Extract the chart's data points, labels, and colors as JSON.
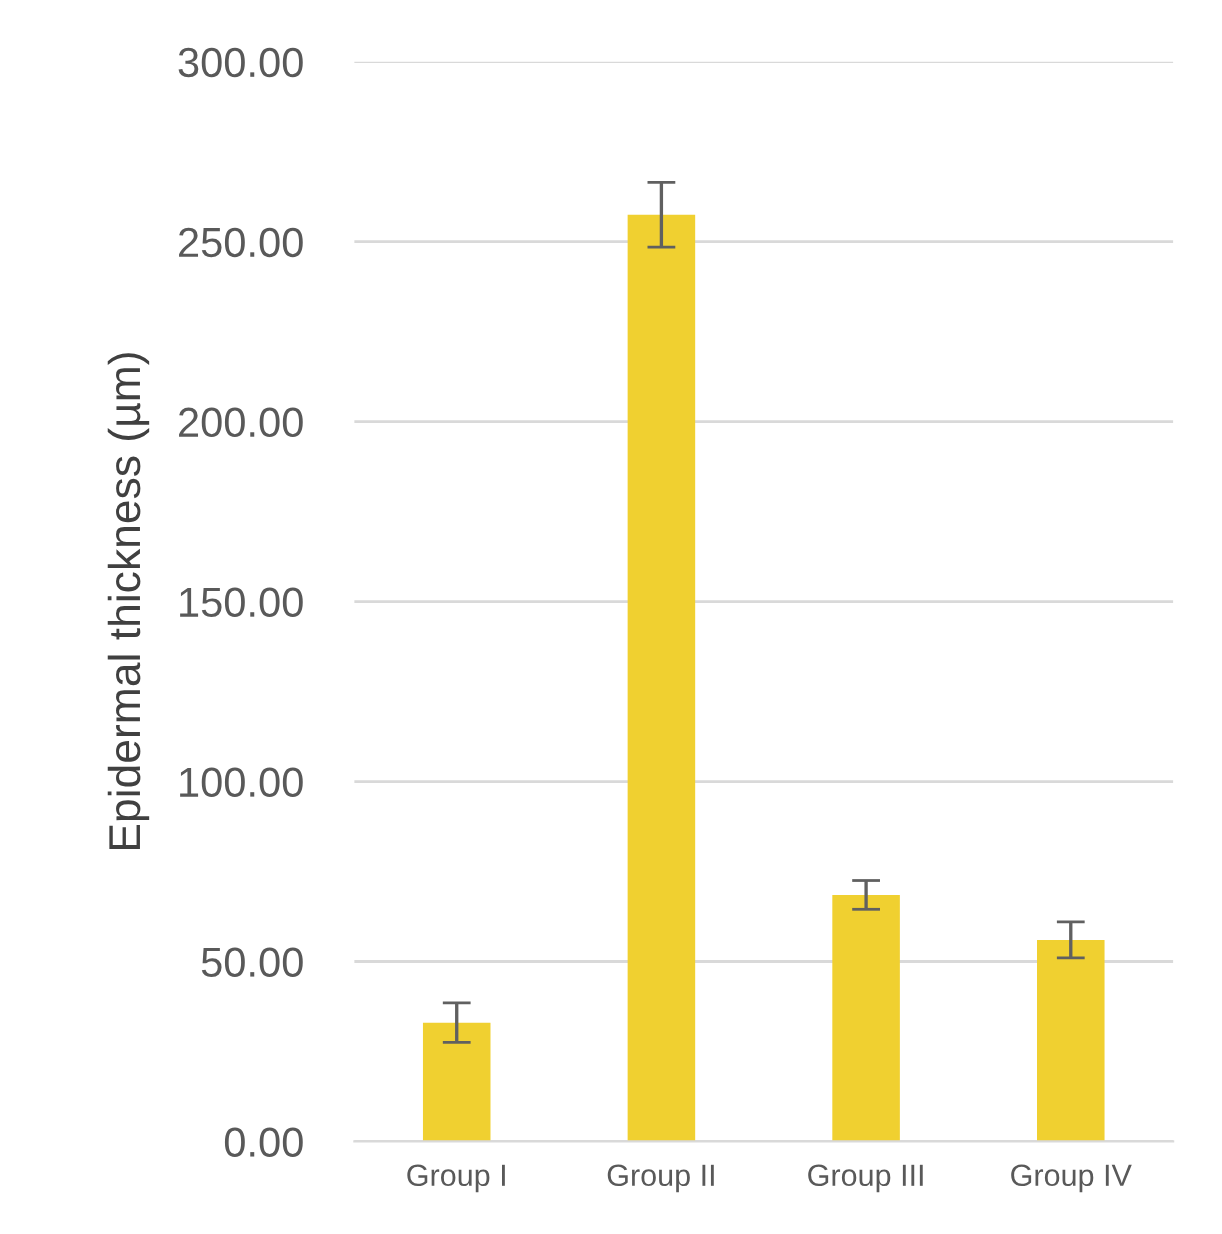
{
  "chart_data": {
    "type": "bar",
    "ylabel": "Epidermal thickness (µm)",
    "categories": [
      "Group I",
      "Group II",
      "Group III",
      "Group IV"
    ],
    "values": [
      33,
      257.5,
      68.5,
      56
    ],
    "errors": [
      5.5,
      9,
      4,
      5
    ],
    "color": "#f0d030",
    "ylim": [
      0,
      300
    ],
    "yticks": [
      {
        "value": 0,
        "label": "0.00"
      },
      {
        "value": 50,
        "label": "50.00"
      },
      {
        "value": 100,
        "label": "100.00"
      },
      {
        "value": 150,
        "label": "150.00"
      },
      {
        "value": 200,
        "label": "200.00"
      },
      {
        "value": 250,
        "label": "250.00"
      },
      {
        "value": 300,
        "label": "300.00"
      }
    ],
    "grid": "y"
  }
}
